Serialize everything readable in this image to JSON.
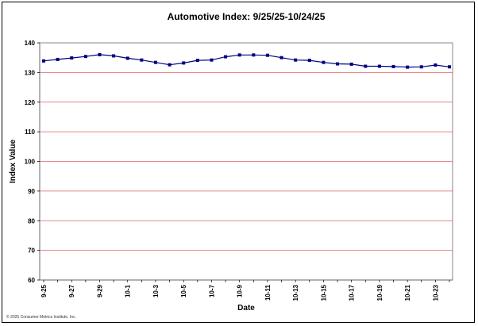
{
  "chart_data": {
    "type": "line",
    "title": "Automotive Index: 9/25/25-10/24/25",
    "xlabel": "Date",
    "ylabel": "Index Value",
    "ylim": [
      60,
      140
    ],
    "yticks": [
      60,
      70,
      80,
      90,
      100,
      110,
      120,
      130,
      140
    ],
    "grid": true,
    "legend": "none",
    "x": [
      "9-25",
      "9-26",
      "9-27",
      "9-28",
      "9-29",
      "9-30",
      "10-1",
      "10-2",
      "10-3",
      "10-4",
      "10-5",
      "10-6",
      "10-7",
      "10-8",
      "10-9",
      "10-10",
      "10-11",
      "10-12",
      "10-13",
      "10-14",
      "10-15",
      "10-16",
      "10-17",
      "10-18",
      "10-19",
      "10-20",
      "10-21",
      "10-22",
      "10-23",
      "10-24"
    ],
    "xtick_labels": [
      "9-25",
      "9-27",
      "9-29",
      "10-1",
      "10-3",
      "10-5",
      "10-7",
      "10-9",
      "10-11",
      "10-13",
      "10-15",
      "10-17",
      "10-19",
      "10-21",
      "10-23"
    ],
    "series": [
      {
        "values": [
          133.9,
          134.4,
          134.9,
          135.4,
          136.0,
          135.6,
          134.8,
          134.2,
          133.4,
          132.6,
          133.2,
          134.1,
          134.2,
          135.3,
          135.9,
          135.9,
          135.8,
          135.0,
          134.2,
          134.1,
          133.4,
          132.9,
          132.8,
          132.1,
          132.1,
          132.0,
          131.8,
          131.9,
          132.5,
          131.9
        ]
      }
    ],
    "colors": {
      "line": "#000080",
      "marker": "#000080",
      "grid": "#e06060",
      "plot_border": "#808080"
    }
  },
  "footer": {
    "copyright": "© 2025 Consumer Metrics Institute, Inc."
  }
}
